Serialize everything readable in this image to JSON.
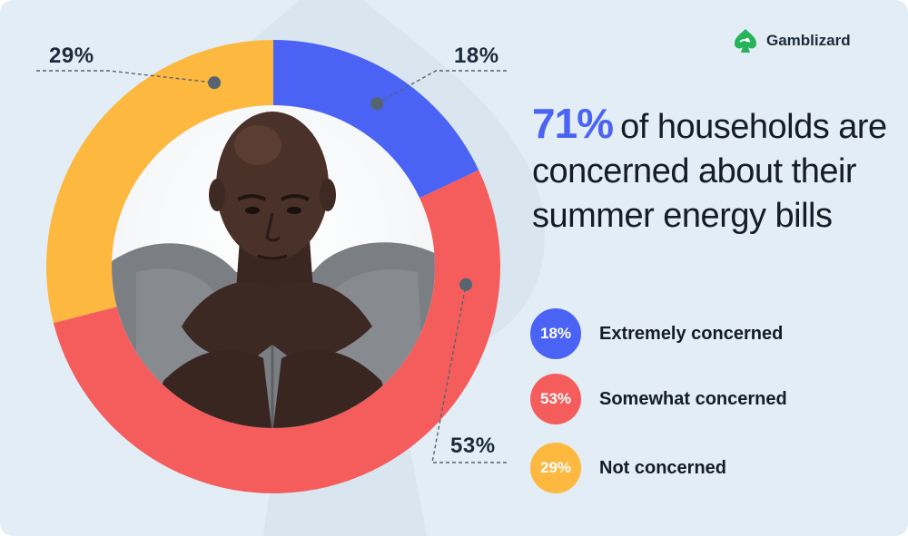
{
  "brand": {
    "name": "Gamblizard",
    "logo_color": "#26b35a"
  },
  "headline": {
    "highlight": "71%",
    "text": "of households are concerned about their summer energy bills"
  },
  "colors": {
    "background": "#e3edf6",
    "accent": "#4a63f5",
    "extremely": "#4a63f5",
    "somewhat": "#f55d5d",
    "not": "#fdb83f"
  },
  "chart_data": {
    "type": "pie",
    "donut": true,
    "title": "",
    "slices": [
      {
        "label": "Extremely concerned",
        "value": 18,
        "display": "18%",
        "color": "#4a63f5"
      },
      {
        "label": "Somewhat concerned",
        "value": 53,
        "display": "53%",
        "color": "#f55d5d"
      },
      {
        "label": "Not concerned",
        "value": 29,
        "display": "29%",
        "color": "#fdb83f"
      }
    ],
    "legend_position": "right"
  }
}
